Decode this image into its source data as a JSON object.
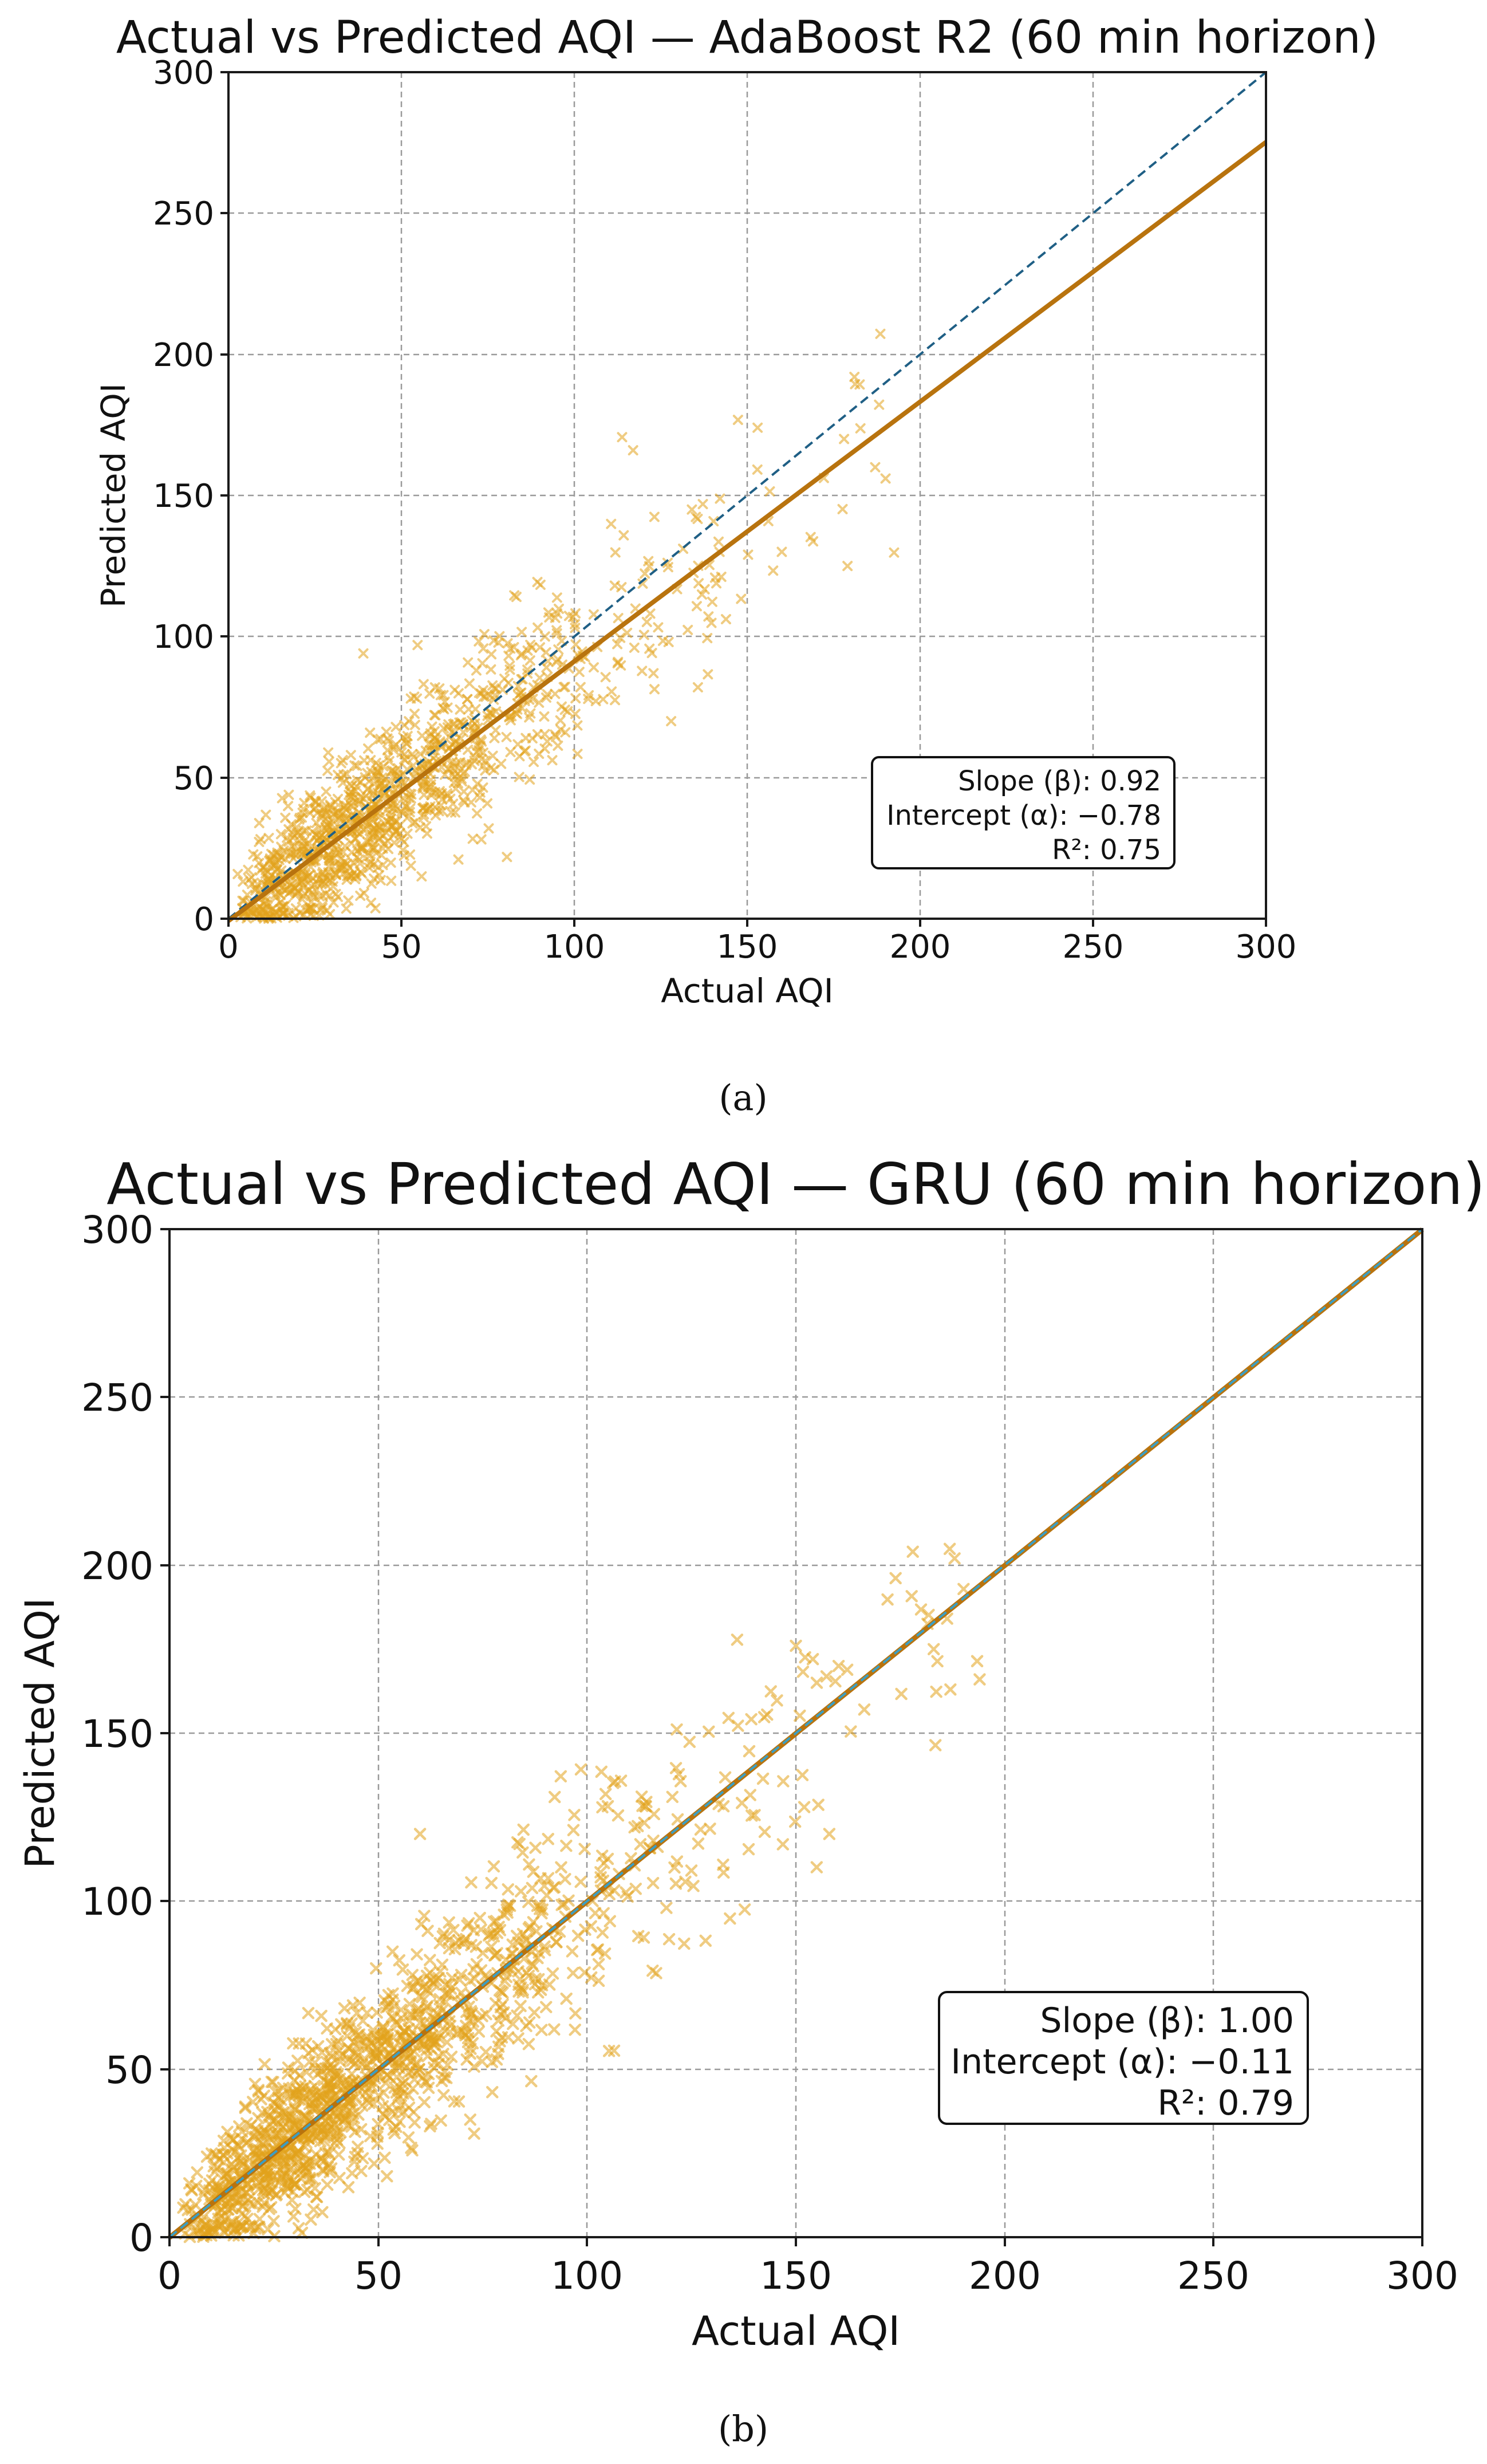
{
  "figure": {
    "panels": [
      {
        "caption": "(a)",
        "stats": [
          "Slope (β): 0.92",
          "Intercept (α): −0.78",
          "R²: 0.75"
        ]
      },
      {
        "caption": "(b)",
        "stats": [
          "Slope (β): 1.00",
          "Intercept (α): −0.11",
          "R²: 0.79"
        ]
      }
    ]
  },
  "colors": {
    "scatter": "#e2a21c",
    "fit_line": "#b8730e",
    "identity_line": "#1f5f85",
    "identity_line_b": "#3a9ec4"
  },
  "chart_data": [
    {
      "type": "scatter",
      "title": "Actual vs Predicted AQI — AdaBoost R2 (60 min horizon)",
      "xlabel": "Actual AQI",
      "ylabel": "Predicted AQI",
      "xlim": [
        0,
        300
      ],
      "ylim": [
        0,
        300
      ],
      "xticks": [
        0,
        50,
        100,
        150,
        200,
        250,
        300
      ],
      "yticks": [
        0,
        50,
        100,
        150,
        200,
        250,
        300
      ],
      "grid": true,
      "marker": "x",
      "n_points": 1100,
      "seed": 7,
      "x_distribution": {
        "shape": "gamma",
        "mode": 30,
        "mean": 52,
        "max": 197
      },
      "residual_sd": 16,
      "fit": {
        "slope": 0.92,
        "intercept": -0.78,
        "r2": 0.75
      },
      "identity_line": {
        "slope": 1,
        "intercept": 0,
        "style": "dashed"
      },
      "highlight_points": [
        {
          "x": 181,
          "y": 192
        },
        {
          "x": 153,
          "y": 174
        },
        {
          "x": 117,
          "y": 166
        },
        {
          "x": 179,
          "y": 125
        },
        {
          "x": 190,
          "y": 156
        },
        {
          "x": 160,
          "y": 130
        },
        {
          "x": 187,
          "y": 160
        },
        {
          "x": 178,
          "y": 170
        },
        {
          "x": 39,
          "y": 94
        },
        {
          "x": 134,
          "y": 145
        },
        {
          "x": 142,
          "y": 130
        },
        {
          "x": 128,
          "y": 70
        }
      ],
      "legend": "bottom-right"
    },
    {
      "type": "scatter",
      "title": "Actual vs Predicted AQI — GRU (60 min horizon)",
      "xlabel": "Actual AQI",
      "ylabel": "Predicted AQI",
      "xlim": [
        0,
        300
      ],
      "ylim": [
        0,
        300
      ],
      "xticks": [
        0,
        50,
        100,
        150,
        200,
        250,
        300
      ],
      "yticks": [
        0,
        50,
        100,
        150,
        200,
        250,
        300
      ],
      "grid": true,
      "marker": "x",
      "n_points": 1300,
      "seed": 23,
      "x_distribution": {
        "shape": "gamma",
        "mode": 30,
        "mean": 52,
        "max": 197
      },
      "residual_sd": 15,
      "fit": {
        "slope": 1.0,
        "intercept": -0.11,
        "r2": 0.79
      },
      "identity_line": {
        "slope": 1,
        "intercept": 0,
        "style": "dashed"
      },
      "highlight_points": [
        {
          "x": 178,
          "y": 204
        },
        {
          "x": 188,
          "y": 202
        },
        {
          "x": 150,
          "y": 176
        },
        {
          "x": 155,
          "y": 165
        },
        {
          "x": 187,
          "y": 163
        },
        {
          "x": 194,
          "y": 166
        },
        {
          "x": 158,
          "y": 120
        },
        {
          "x": 60,
          "y": 120
        },
        {
          "x": 119,
          "y": 98
        },
        {
          "x": 152,
          "y": 128
        },
        {
          "x": 183,
          "y": 175
        }
      ],
      "legend": "bottom-right"
    }
  ]
}
